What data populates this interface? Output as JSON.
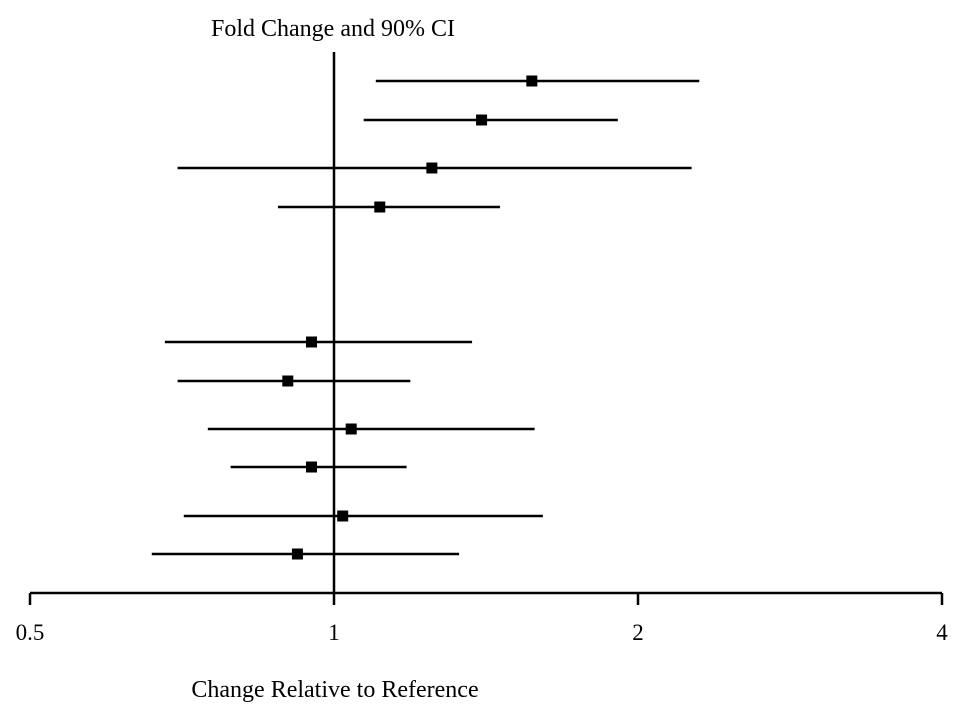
{
  "chart_data": {
    "type": "scatter",
    "title": "Fold Change and 90% CI",
    "xlabel": "Change Relative to Reference",
    "ylabel": "",
    "xscale": "log2",
    "xlim": [
      0.5,
      4
    ],
    "xticks": [
      0.5,
      1,
      2,
      4
    ],
    "xtick_labels": [
      "0.5",
      "1",
      "2",
      "4"
    ],
    "reference_line": 1,
    "grid": false,
    "legend": "none",
    "colors": {
      "marker": "#000000",
      "line": "#000000"
    },
    "series": [
      {
        "points": [
          {
            "estimate": 1.57,
            "lower": 1.1,
            "upper": 2.3
          },
          {
            "estimate": 1.4,
            "lower": 1.07,
            "upper": 1.91
          },
          {
            "estimate": 1.25,
            "lower": 0.7,
            "upper": 2.26
          },
          {
            "estimate": 1.11,
            "lower": 0.88,
            "upper": 1.46
          },
          {
            "estimate": 0.95,
            "lower": 0.68,
            "upper": 1.37
          },
          {
            "estimate": 0.9,
            "lower": 0.7,
            "upper": 1.19
          },
          {
            "estimate": 1.04,
            "lower": 0.75,
            "upper": 1.58
          },
          {
            "estimate": 0.95,
            "lower": 0.79,
            "upper": 1.18
          },
          {
            "estimate": 1.02,
            "lower": 0.71,
            "upper": 1.61
          },
          {
            "estimate": 0.92,
            "lower": 0.66,
            "upper": 1.33
          }
        ]
      }
    ]
  }
}
